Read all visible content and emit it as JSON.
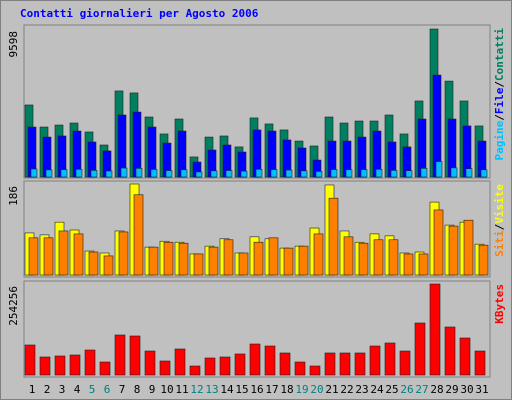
{
  "title": "Contatti giornalieri per Agosto 2006",
  "title_color": "#0000ff",
  "legend_separator": "/",
  "weekend_days": [
    5,
    6,
    12,
    13,
    19,
    20,
    26,
    27
  ],
  "weekend_label_color": "#008080",
  "chart_data": [
    {
      "type": "bar",
      "ylim": [
        0,
        9598
      ],
      "yticks": [
        9598
      ],
      "series": [
        {
          "name": "Contatti",
          "color": "#008060",
          "values": [
            4670,
            3240,
            3370,
            3500,
            2920,
            2075,
            5580,
            5450,
            3890,
            2790,
            3760,
            1300,
            2590,
            2660,
            1950,
            3830,
            3440,
            3050,
            2330,
            2010,
            3890,
            3500,
            3630,
            3630,
            4020,
            2790,
            4930,
            9598,
            6220,
            4930,
            3310
          ]
        },
        {
          "name": "File",
          "color": "#0000ff",
          "values": [
            3240,
            2590,
            2660,
            2980,
            2270,
            1690,
            4020,
            4210,
            3240,
            2200,
            2980,
            970,
            1750,
            2075,
            1620,
            3050,
            2980,
            2400,
            1880,
            1100,
            2330,
            2330,
            2590,
            2980,
            2270,
            1950,
            3760,
            6610,
            3760,
            3310,
            2330
          ]
        },
        {
          "name": "Pagine",
          "color": "#00c0ff",
          "values": [
            520,
            460,
            480,
            500,
            430,
            390,
            580,
            560,
            490,
            420,
            470,
            330,
            400,
            420,
            380,
            500,
            480,
            450,
            400,
            360,
            480,
            470,
            480,
            500,
            430,
            410,
            560,
            1000,
            590,
            540,
            470
          ]
        }
      ]
    },
    {
      "type": "bar",
      "ylim": [
        0,
        186
      ],
      "yticks": [
        186
      ],
      "series": [
        {
          "name": "Visite",
          "color": "#ffff00",
          "values": [
            86,
            82,
            108,
            92,
            49,
            45,
            90,
            186,
            57,
            69,
            67,
            43,
            59,
            74,
            45,
            78,
            74,
            55,
            59,
            96,
            184,
            90,
            67,
            84,
            80,
            45,
            47,
            149,
            102,
            108,
            63
          ]
        },
        {
          "name": "Siti",
          "color": "#ff8000",
          "values": [
            76,
            76,
            90,
            84,
            47,
            39,
            88,
            164,
            57,
            67,
            65,
            43,
            57,
            72,
            45,
            67,
            76,
            55,
            59,
            84,
            157,
            78,
            65,
            72,
            72,
            43,
            43,
            133,
            100,
            112,
            61
          ]
        }
      ]
    },
    {
      "type": "bar",
      "ylim": [
        0,
        254256
      ],
      "yticks": [
        254256
      ],
      "categories": [
        "1",
        "2",
        "3",
        "4",
        "5",
        "6",
        "7",
        "8",
        "9",
        "10",
        "11",
        "12",
        "13",
        "14",
        "15",
        "16",
        "17",
        "18",
        "19",
        "20",
        "21",
        "22",
        "23",
        "24",
        "25",
        "26",
        "27",
        "28",
        "29",
        "30",
        "31"
      ],
      "series": [
        {
          "name": "KBytes",
          "color": "#ff0000",
          "values": [
            83800,
            50300,
            53100,
            55900,
            69800,
            36300,
            111800,
            109000,
            67000,
            39100,
            72600,
            25100,
            47500,
            50300,
            58700,
            86600,
            81000,
            61500,
            36300,
            25100,
            61500,
            61500,
            61500,
            81000,
            89400,
            67000,
            145300,
            254256,
            134100,
            103400,
            67000
          ]
        }
      ]
    }
  ]
}
